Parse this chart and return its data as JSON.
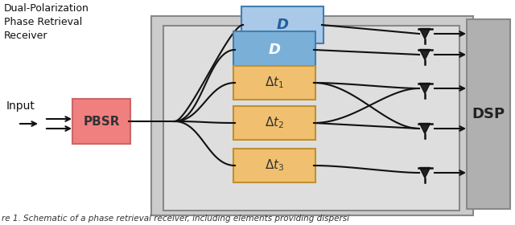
{
  "title": "Dual-Polarization\nPhase Retrieval\nReceiver",
  "input_label": "Input",
  "pbsr_label": "PBSR",
  "dsp_label": "DSP",
  "D_label": "D",
  "bg_color": "#ffffff",
  "outer_box_fill": "#cccccc",
  "outer_box_edge": "#888888",
  "inner_box_fill": "#dedede",
  "inner_box_edge": "#888888",
  "pbsr_fill": "#f08080",
  "pbsr_edge": "#cc6666",
  "dsp_fill": "#b0b0b0",
  "dsp_edge": "#888888",
  "D_outer_fill": "#aac8e8",
  "D_outer_edge": "#4080b0",
  "D_inner_fill": "#7ab0d8",
  "D_inner_edge": "#4080b0",
  "delay_fill": "#f0c070",
  "delay_edge": "#c09030",
  "line_color": "#111111",
  "caption": "re 1. Schematic of a phase retrieval receiver, including elements providing dispersi"
}
